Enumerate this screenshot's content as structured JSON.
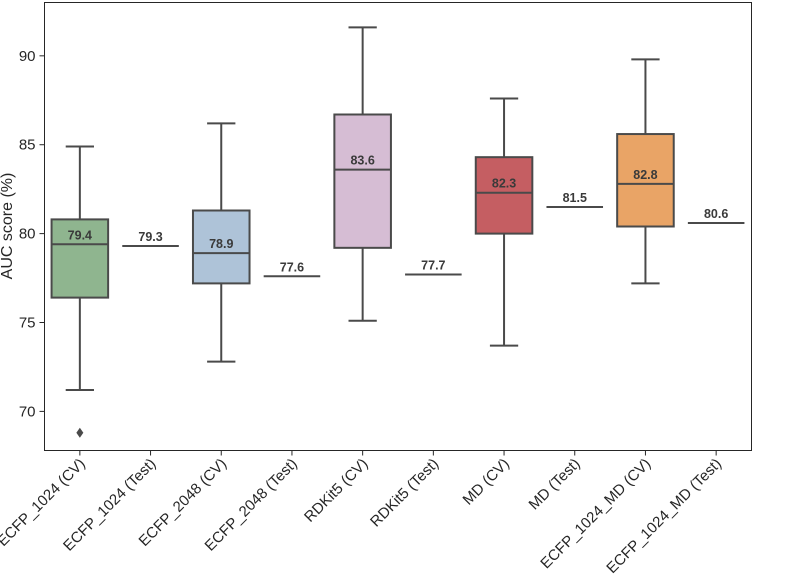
{
  "chart_data": {
    "type": "box",
    "ylabel": "AUC score (%)",
    "ylim": [
      67.8,
      93.0
    ],
    "yticks": [
      70,
      75,
      80,
      85,
      90
    ],
    "grid": false,
    "categories": [
      "ECFP_1024 (CV)",
      "ECFP_1024 (Test)",
      "ECFP_2048 (CV)",
      "ECFP_2048 (Test)",
      "RDKit5 (CV)",
      "RDKit5 (Test)",
      "MD (CV)",
      "MD (Test)",
      "ECFP_1024_MD (CV)",
      "ECFP_1024_MD (Test)"
    ],
    "boxes": [
      {
        "kind": "box",
        "color": "#8fb58f",
        "whisker_low": 71.2,
        "q1": 76.4,
        "median": 79.4,
        "q3": 80.8,
        "whisker_high": 84.9,
        "outliers": [
          68.8
        ],
        "label": "79.4"
      },
      {
        "kind": "line",
        "value": 79.3,
        "label": "79.3"
      },
      {
        "kind": "box",
        "color": "#aec3d8",
        "whisker_low": 72.8,
        "q1": 77.2,
        "median": 78.9,
        "q3": 81.3,
        "whisker_high": 86.2,
        "outliers": [],
        "label": "78.9"
      },
      {
        "kind": "line",
        "value": 77.6,
        "label": "77.6"
      },
      {
        "kind": "box",
        "color": "#d6bdd4",
        "whisker_low": 75.1,
        "q1": 79.2,
        "median": 83.6,
        "q3": 86.7,
        "whisker_high": 91.6,
        "outliers": [],
        "label": "83.6"
      },
      {
        "kind": "line",
        "value": 77.7,
        "label": "77.7"
      },
      {
        "kind": "box",
        "color": "#c55e62",
        "whisker_low": 73.7,
        "q1": 80.0,
        "median": 82.3,
        "q3": 84.3,
        "whisker_high": 87.6,
        "outliers": [],
        "label": "82.3"
      },
      {
        "kind": "line",
        "value": 81.5,
        "label": "81.5"
      },
      {
        "kind": "box",
        "color": "#e9a466",
        "whisker_low": 77.2,
        "q1": 80.4,
        "median": 82.8,
        "q3": 85.6,
        "whisker_high": 89.8,
        "outliers": [],
        "label": "82.8"
      },
      {
        "kind": "line",
        "value": 80.6,
        "label": "80.6"
      }
    ]
  }
}
